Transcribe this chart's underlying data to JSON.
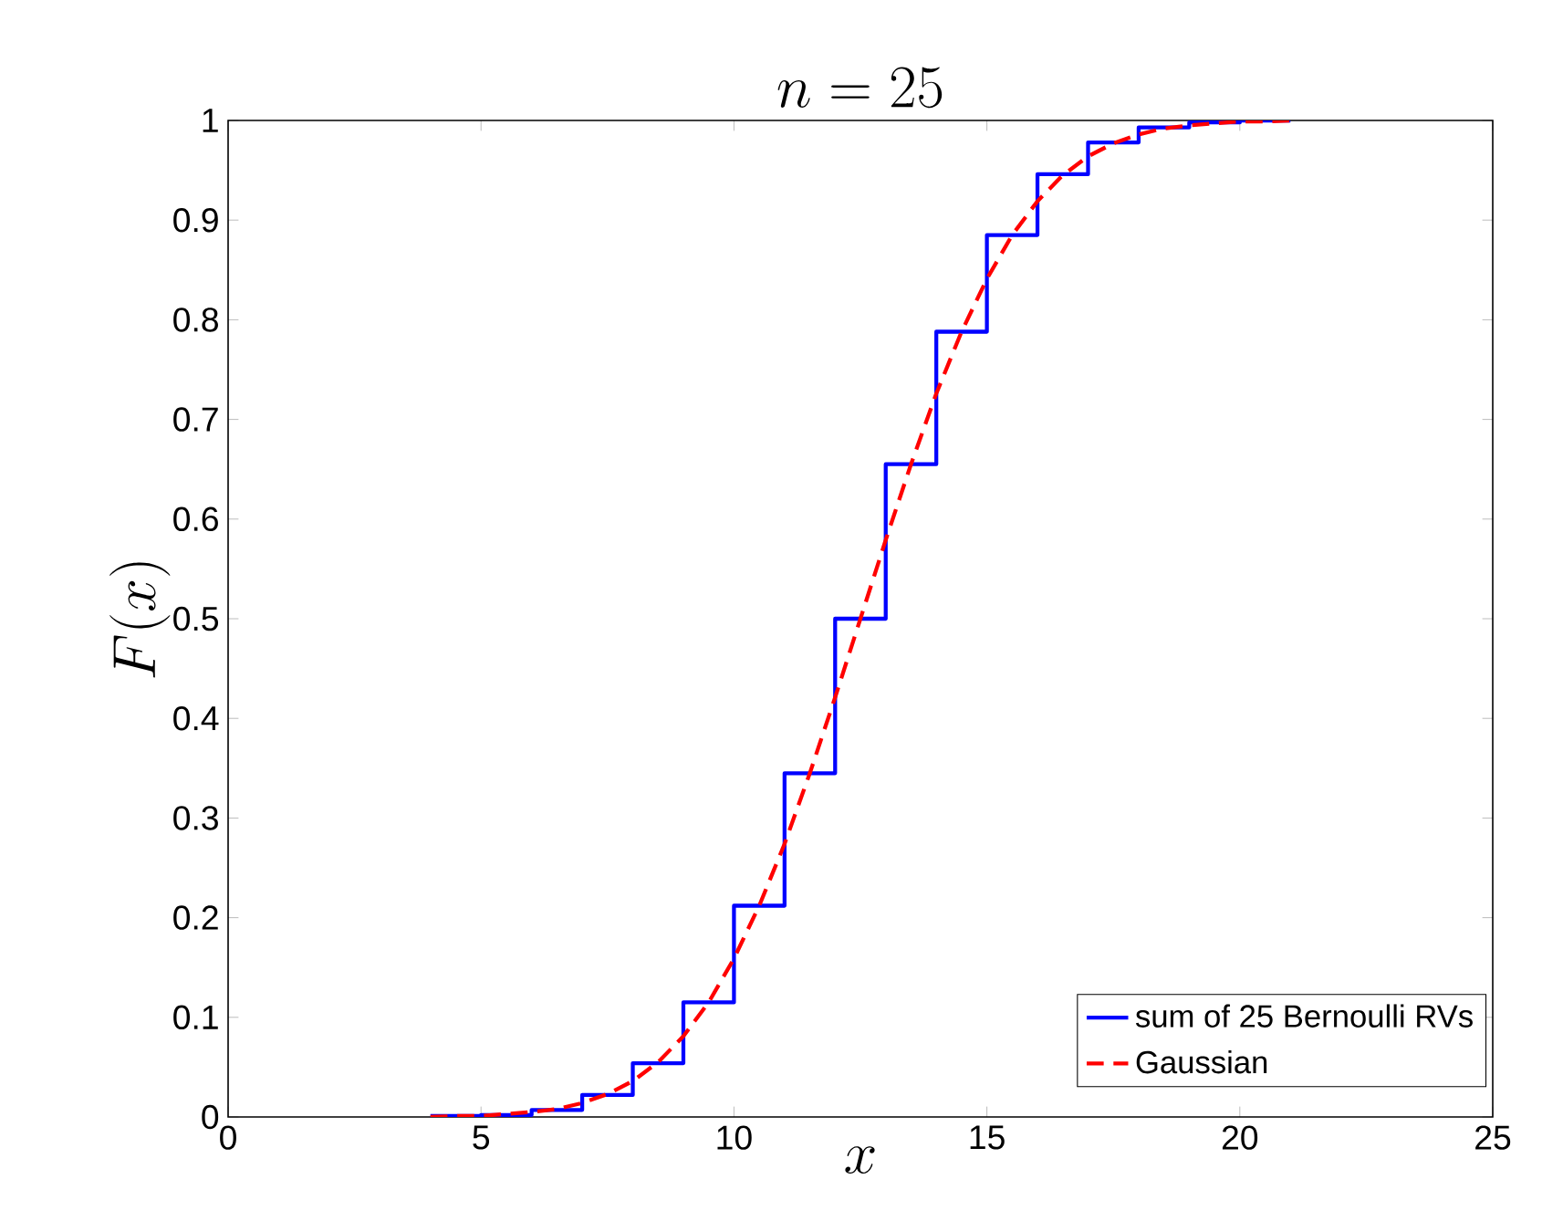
{
  "chart_data": {
    "type": "step",
    "title": "n = 25",
    "xlabel": "x",
    "ylabel": "F(x)",
    "xlim": [
      0,
      25
    ],
    "ylim": [
      0,
      1
    ],
    "xticks": [
      0,
      5,
      10,
      15,
      20,
      25
    ],
    "yticks": [
      0,
      0.1,
      0.2,
      0.3,
      0.4,
      0.5,
      0.6,
      0.7,
      0.8,
      0.9,
      1
    ],
    "legend": "bottom right",
    "grid": false,
    "series": [
      {
        "name": "sum of 25 Bernoulli RVs",
        "color": "#0000ff",
        "line_style": "solid",
        "x": [
          4,
          5,
          6,
          7,
          8,
          9,
          10,
          11,
          12,
          13,
          14,
          15,
          16,
          17,
          18,
          19,
          20,
          21
        ],
        "values": [
          0.001,
          0.002,
          0.007,
          0.022,
          0.054,
          0.115,
          0.212,
          0.345,
          0.5,
          0.655,
          0.788,
          0.885,
          0.946,
          0.978,
          0.993,
          0.998,
          1.0,
          1.0
        ]
      },
      {
        "name": "Gaussian",
        "type": "line",
        "color": "#ff0000",
        "line_style": "dashed",
        "x": [
          4,
          4.5,
          5,
          5.5,
          6,
          6.5,
          7,
          7.5,
          8,
          8.5,
          9,
          9.5,
          10,
          10.5,
          11,
          11.5,
          12,
          12.5,
          13,
          13.5,
          14,
          14.5,
          15,
          15.5,
          16,
          16.5,
          17,
          17.5,
          18,
          18.5,
          19,
          19.5,
          20,
          20.5,
          21
        ],
        "values": [
          0.0,
          0.001,
          0.001,
          0.003,
          0.005,
          0.008,
          0.014,
          0.023,
          0.036,
          0.055,
          0.081,
          0.115,
          0.159,
          0.212,
          0.274,
          0.345,
          0.421,
          0.5,
          0.579,
          0.655,
          0.726,
          0.788,
          0.841,
          0.885,
          0.919,
          0.945,
          0.964,
          0.977,
          0.986,
          0.992,
          0.995,
          0.997,
          0.999,
          0.999,
          1.0
        ]
      }
    ]
  }
}
